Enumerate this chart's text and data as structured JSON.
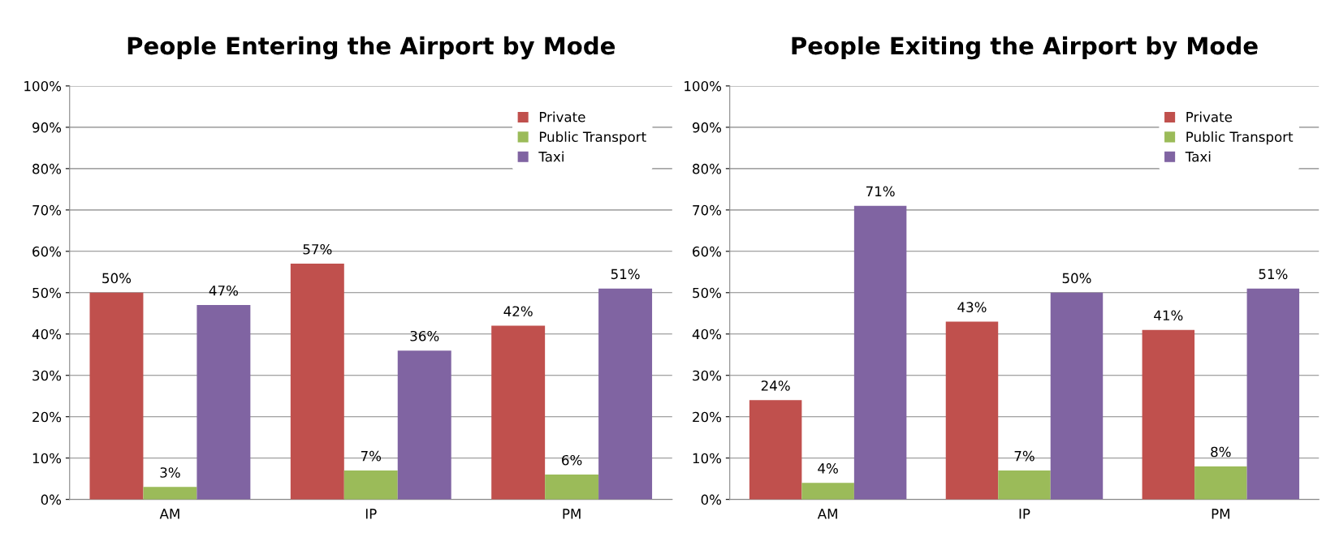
{
  "chart_data": [
    {
      "type": "bar",
      "title": "People Entering the Airport by Mode",
      "categories": [
        "AM",
        "IP",
        "PM"
      ],
      "series": [
        {
          "name": "Private",
          "color": "#c0504d",
          "values": [
            50,
            57,
            42
          ],
          "value_labels": [
            "50%",
            "57%",
            "42%"
          ]
        },
        {
          "name": "Public Transport",
          "color": "#9bbb59",
          "values": [
            3,
            7,
            6
          ],
          "value_labels": [
            "3%",
            "7%",
            "6%"
          ]
        },
        {
          "name": "Taxi",
          "color": "#8064a2",
          "values": [
            47,
            36,
            51
          ],
          "value_labels": [
            "47%",
            "36%",
            "51%"
          ]
        }
      ],
      "ylim": [
        0,
        100
      ],
      "yticks": [
        {
          "value": 0,
          "label": "0%"
        },
        {
          "value": 10,
          "label": "10%"
        },
        {
          "value": 20,
          "label": "20%"
        },
        {
          "value": 30,
          "label": "30%"
        },
        {
          "value": 40,
          "label": "40%"
        },
        {
          "value": 50,
          "label": "50%"
        },
        {
          "value": 60,
          "label": "60%"
        },
        {
          "value": 70,
          "label": "70%"
        },
        {
          "value": 80,
          "label": "80%"
        },
        {
          "value": 90,
          "label": "90%"
        },
        {
          "value": 100,
          "label": "100%"
        }
      ],
      "grid": "y",
      "legend": "top right"
    },
    {
      "type": "bar",
      "title": "People Exiting the Airport by Mode",
      "categories": [
        "AM",
        "IP",
        "PM"
      ],
      "series": [
        {
          "name": "Private",
          "color": "#c0504d",
          "values": [
            24,
            43,
            41
          ],
          "value_labels": [
            "24%",
            "43%",
            "41%"
          ]
        },
        {
          "name": "Public Transport",
          "color": "#9bbb59",
          "values": [
            4,
            7,
            8
          ],
          "value_labels": [
            "4%",
            "7%",
            "8%"
          ]
        },
        {
          "name": "Taxi",
          "color": "#8064a2",
          "values": [
            71,
            50,
            51
          ],
          "value_labels": [
            "71%",
            "50%",
            "51%"
          ]
        }
      ],
      "ylim": [
        0,
        100
      ],
      "yticks": [
        {
          "value": 0,
          "label": "0%"
        },
        {
          "value": 10,
          "label": "10%"
        },
        {
          "value": 20,
          "label": "20%"
        },
        {
          "value": 30,
          "label": "30%"
        },
        {
          "value": 40,
          "label": "40%"
        },
        {
          "value": 50,
          "label": "50%"
        },
        {
          "value": 60,
          "label": "60%"
        },
        {
          "value": 70,
          "label": "70%"
        },
        {
          "value": 80,
          "label": "80%"
        },
        {
          "value": 90,
          "label": "90%"
        },
        {
          "value": 100,
          "label": "100%"
        }
      ],
      "grid": "y",
      "legend": "top right"
    }
  ]
}
